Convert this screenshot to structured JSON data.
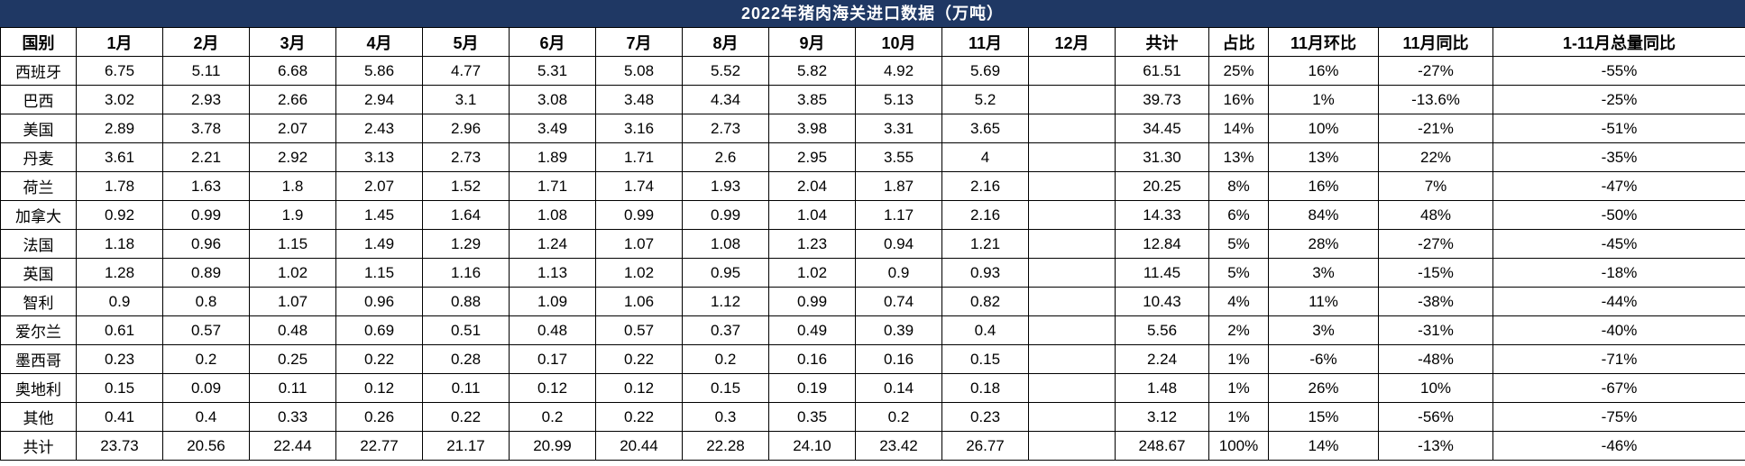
{
  "colors": {
    "title_bg": "#1F3864",
    "title_text": "#FFFFFF",
    "border": "#000000",
    "cell_bg": "#FFFFFF",
    "cell_text": "#000000"
  },
  "chart_data": {
    "type": "table",
    "title": "2022年猪肉海关进口数据（万吨）",
    "columns": [
      "国别",
      "1月",
      "2月",
      "3月",
      "4月",
      "5月",
      "6月",
      "7月",
      "8月",
      "9月",
      "10月",
      "11月",
      "12月",
      "共计",
      "占比",
      "11月环比",
      "11月同比",
      "1-11月总量同比"
    ],
    "rows": [
      [
        "西班牙",
        "6.75",
        "5.11",
        "6.68",
        "5.86",
        "4.77",
        "5.31",
        "5.08",
        "5.52",
        "5.82",
        "4.92",
        "5.69",
        "",
        "61.51",
        "25%",
        "16%",
        "-27%",
        "-55%"
      ],
      [
        "巴西",
        "3.02",
        "2.93",
        "2.66",
        "2.94",
        "3.1",
        "3.08",
        "3.48",
        "4.34",
        "3.85",
        "5.13",
        "5.2",
        "",
        "39.73",
        "16%",
        "1%",
        "-13.6%",
        "-25%"
      ],
      [
        "美国",
        "2.89",
        "3.78",
        "2.07",
        "2.43",
        "2.96",
        "3.49",
        "3.16",
        "2.73",
        "3.98",
        "3.31",
        "3.65",
        "",
        "34.45",
        "14%",
        "10%",
        "-21%",
        "-51%"
      ],
      [
        "丹麦",
        "3.61",
        "2.21",
        "2.92",
        "3.13",
        "2.73",
        "1.89",
        "1.71",
        "2.6",
        "2.95",
        "3.55",
        "4",
        "",
        "31.30",
        "13%",
        "13%",
        "22%",
        "-35%"
      ],
      [
        "荷兰",
        "1.78",
        "1.63",
        "1.8",
        "2.07",
        "1.52",
        "1.71",
        "1.74",
        "1.93",
        "2.04",
        "1.87",
        "2.16",
        "",
        "20.25",
        "8%",
        "16%",
        "7%",
        "-47%"
      ],
      [
        "加拿大",
        "0.92",
        "0.99",
        "1.9",
        "1.45",
        "1.64",
        "1.08",
        "0.99",
        "0.99",
        "1.04",
        "1.17",
        "2.16",
        "",
        "14.33",
        "6%",
        "84%",
        "48%",
        "-50%"
      ],
      [
        "法国",
        "1.18",
        "0.96",
        "1.15",
        "1.49",
        "1.29",
        "1.24",
        "1.07",
        "1.08",
        "1.23",
        "0.94",
        "1.21",
        "",
        "12.84",
        "5%",
        "28%",
        "-27%",
        "-45%"
      ],
      [
        "英国",
        "1.28",
        "0.89",
        "1.02",
        "1.15",
        "1.16",
        "1.13",
        "1.02",
        "0.95",
        "1.02",
        "0.9",
        "0.93",
        "",
        "11.45",
        "5%",
        "3%",
        "-15%",
        "-18%"
      ],
      [
        "智利",
        "0.9",
        "0.8",
        "1.07",
        "0.96",
        "0.88",
        "1.09",
        "1.06",
        "1.12",
        "0.99",
        "0.74",
        "0.82",
        "",
        "10.43",
        "4%",
        "11%",
        "-38%",
        "-44%"
      ],
      [
        "爱尔兰",
        "0.61",
        "0.57",
        "0.48",
        "0.69",
        "0.51",
        "0.48",
        "0.57",
        "0.37",
        "0.49",
        "0.39",
        "0.4",
        "",
        "5.56",
        "2%",
        "3%",
        "-31%",
        "-40%"
      ],
      [
        "墨西哥",
        "0.23",
        "0.2",
        "0.25",
        "0.22",
        "0.28",
        "0.17",
        "0.22",
        "0.2",
        "0.16",
        "0.16",
        "0.15",
        "",
        "2.24",
        "1%",
        "-6%",
        "-48%",
        "-71%"
      ],
      [
        "奥地利",
        "0.15",
        "0.09",
        "0.11",
        "0.12",
        "0.11",
        "0.12",
        "0.12",
        "0.15",
        "0.19",
        "0.14",
        "0.18",
        "",
        "1.48",
        "1%",
        "26%",
        "10%",
        "-67%"
      ],
      [
        "其他",
        "0.41",
        "0.4",
        "0.33",
        "0.26",
        "0.22",
        "0.2",
        "0.22",
        "0.3",
        "0.35",
        "0.2",
        "0.23",
        "",
        "3.12",
        "1%",
        "15%",
        "-56%",
        "-75%"
      ],
      [
        "共计",
        "23.73",
        "20.56",
        "22.44",
        "22.77",
        "21.17",
        "20.99",
        "20.44",
        "22.28",
        "24.10",
        "23.42",
        "26.77",
        "",
        "248.67",
        "100%",
        "14%",
        "-13%",
        "-46%"
      ]
    ]
  }
}
